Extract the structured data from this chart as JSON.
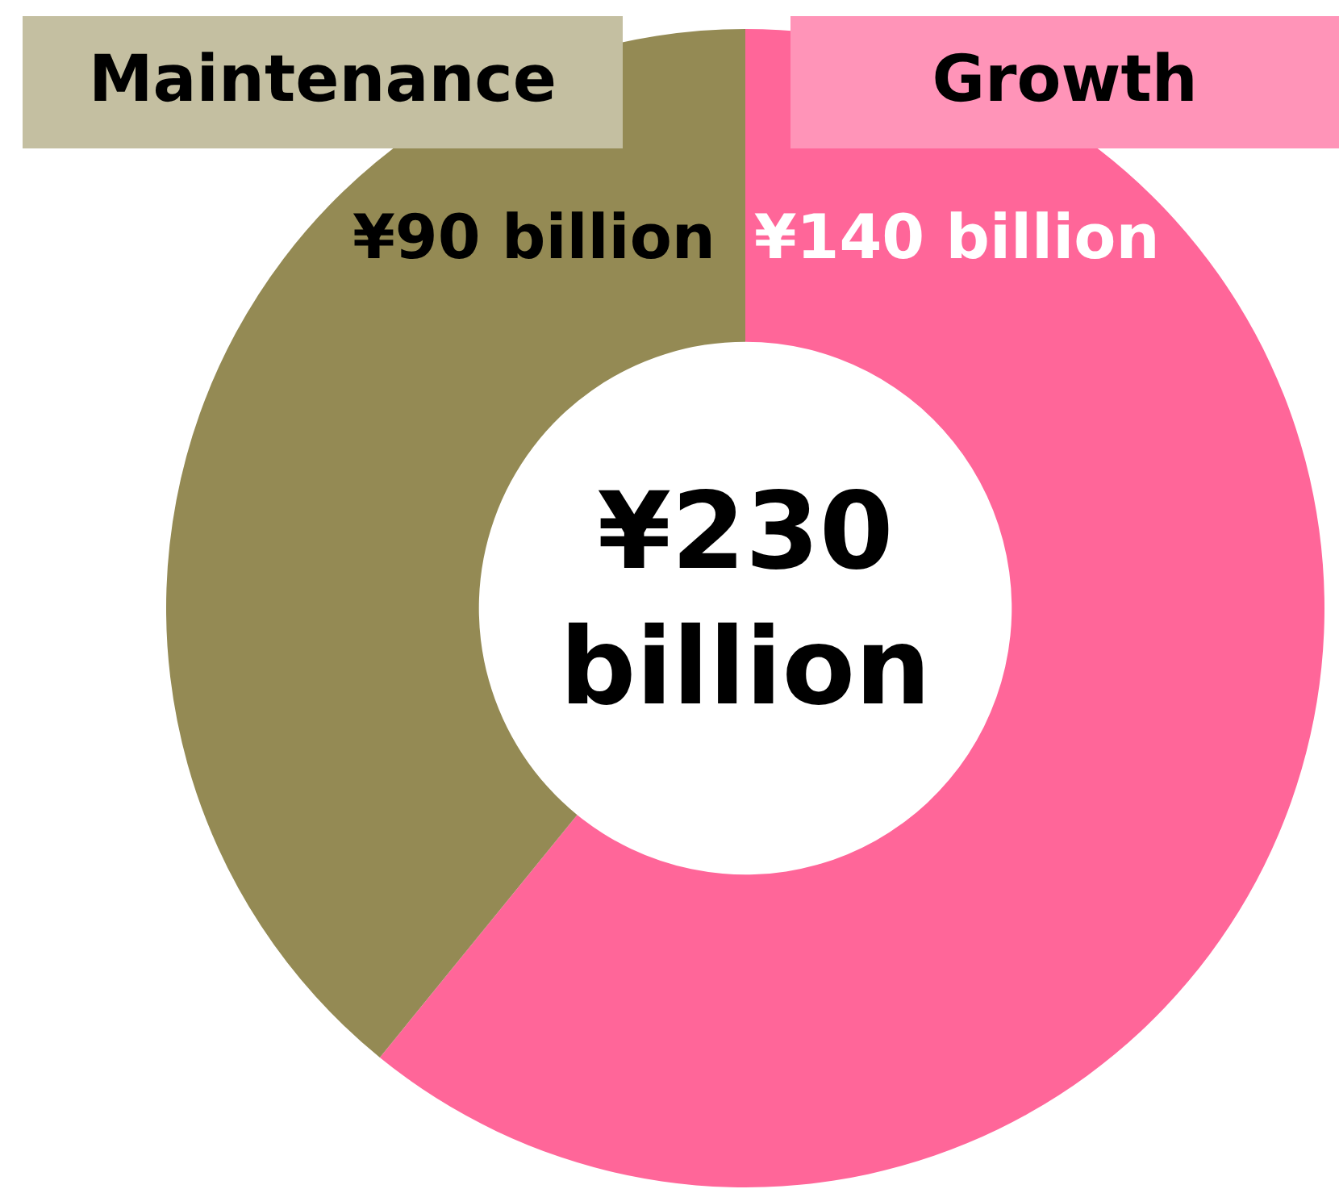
{
  "chart_data": {
    "type": "donut",
    "categories": [
      "Growth",
      "Maintenance"
    ],
    "values": [
      140,
      90
    ],
    "colors": [
      "#ff6699",
      "#948a54"
    ],
    "value_labels": [
      "¥140 billion",
      "¥90 billion"
    ],
    "annotations": [
      "¥230 billion"
    ]
  }
}
